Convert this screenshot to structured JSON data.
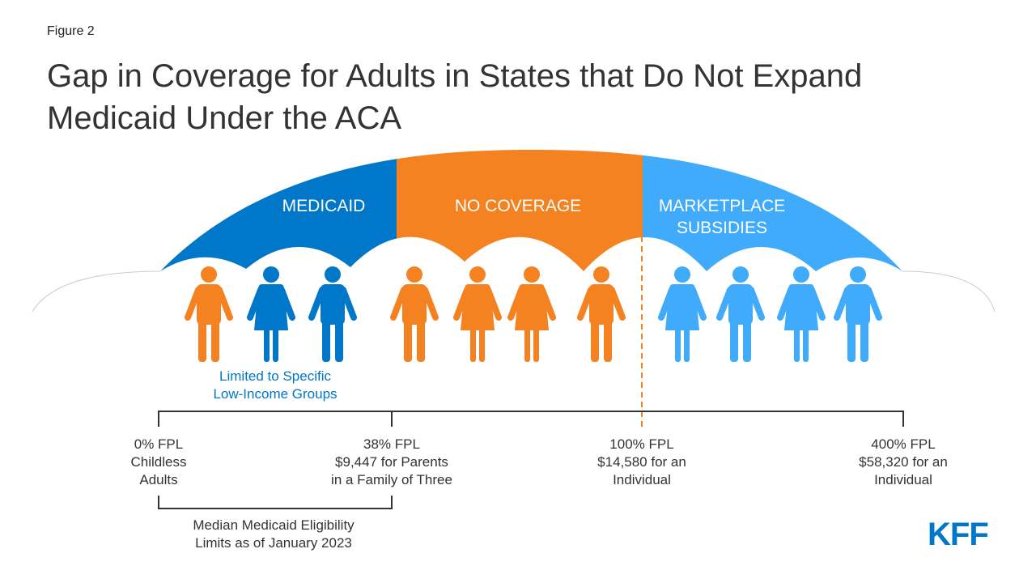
{
  "figure_label": "Figure 2",
  "title": "Gap in Coverage for Adults in States that Do Not Expand Medicaid Under the ACA",
  "colors": {
    "medicaid": "#0077C8",
    "no_coverage": "#F58220",
    "marketplace": "#3FABFA",
    "text": "#333333"
  },
  "umbrella": {
    "medicaid": "MEDICAID",
    "no_coverage": "NO COVERAGE",
    "marketplace_line1": "MARKETPLACE",
    "marketplace_line2": "SUBSIDIES"
  },
  "people": [
    {
      "gender": "man",
      "group": "no_coverage"
    },
    {
      "gender": "woman",
      "group": "medicaid"
    },
    {
      "gender": "man",
      "group": "medicaid"
    },
    {
      "gender": "man",
      "group": "no_coverage"
    },
    {
      "gender": "woman",
      "group": "no_coverage"
    },
    {
      "gender": "woman",
      "group": "no_coverage"
    },
    {
      "gender": "man",
      "group": "no_coverage"
    },
    {
      "gender": "woman",
      "group": "marketplace"
    },
    {
      "gender": "man",
      "group": "marketplace"
    },
    {
      "gender": "woman",
      "group": "marketplace"
    },
    {
      "gender": "man",
      "group": "marketplace"
    }
  ],
  "medicaid_note": {
    "line1": "Limited to Specific",
    "line2": "Low-Income Groups"
  },
  "markers": [
    {
      "line1": "0% FPL",
      "line2": "Childless",
      "line3": "Adults"
    },
    {
      "line1": "38% FPL",
      "line2": "$9,447 for Parents",
      "line3": "in a Family of Three"
    },
    {
      "line1": "100% FPL",
      "line2": "$14,580 for an",
      "line3": "Individual"
    },
    {
      "line1": "400% FPL",
      "line2": "$58,320 for an",
      "line3": "Individual"
    }
  ],
  "bracket_note": {
    "line1": "Median Medicaid Eligibility",
    "line2": "Limits as of January 2023"
  },
  "logo": "KFF"
}
